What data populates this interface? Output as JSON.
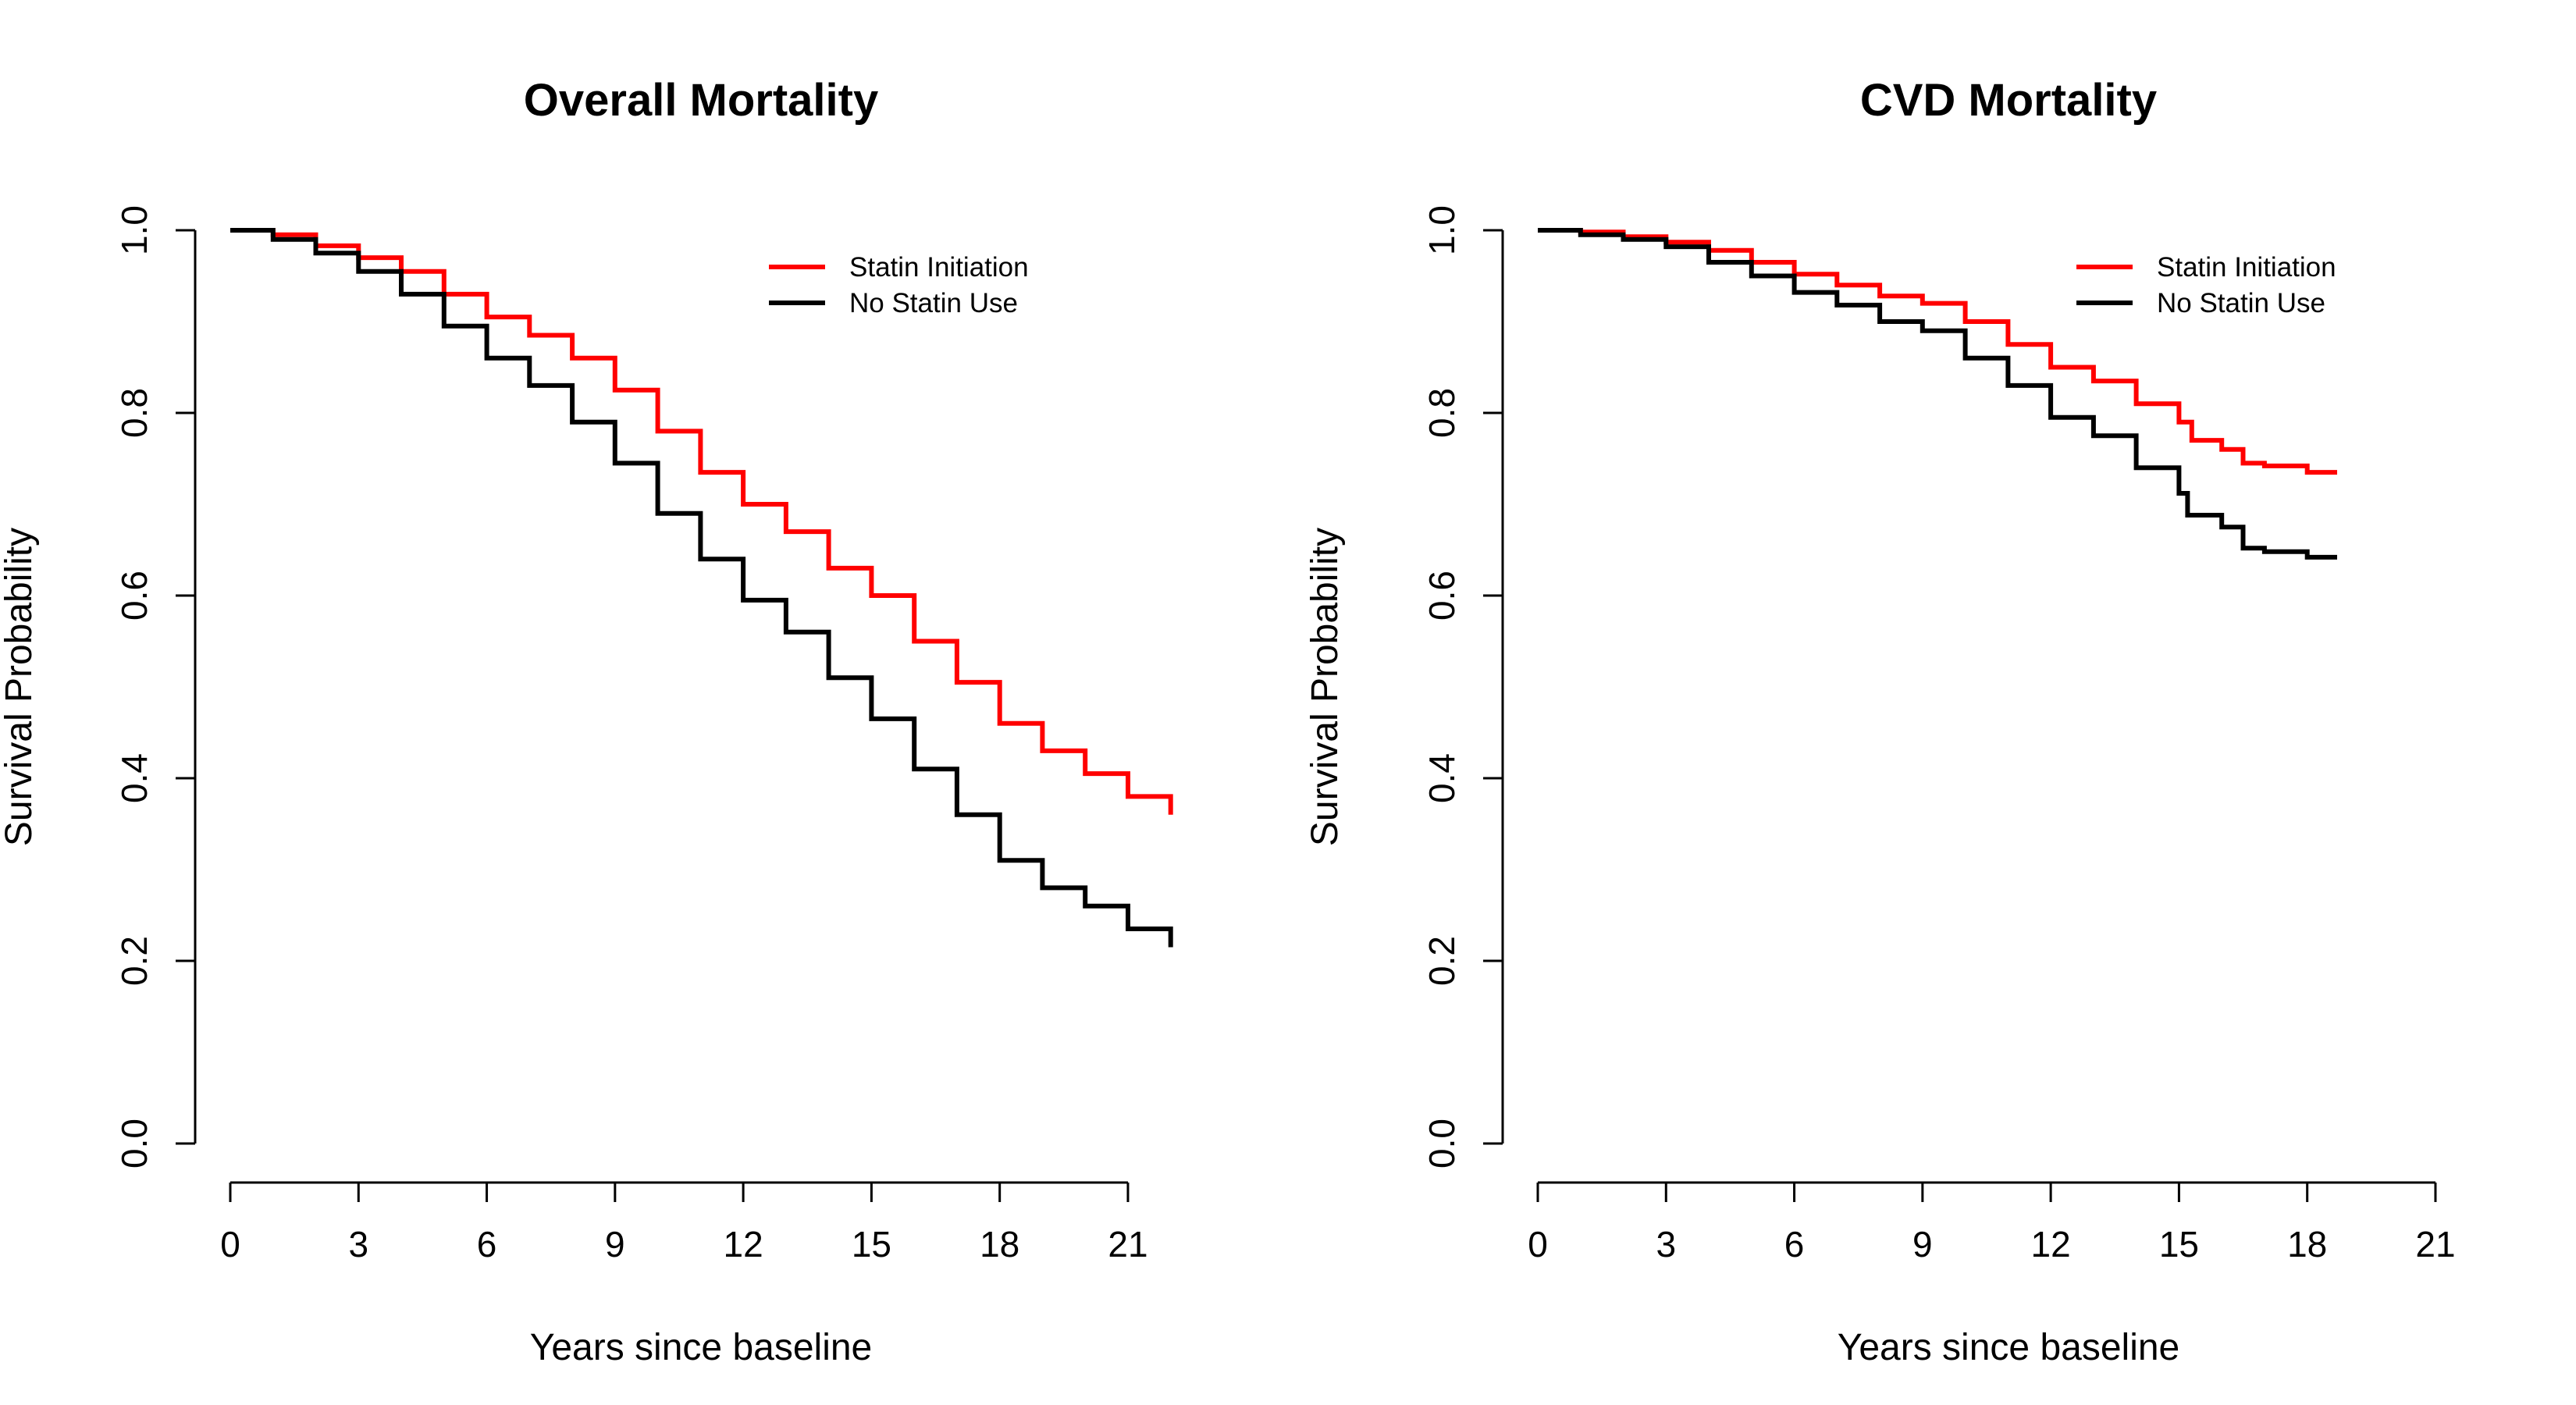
{
  "chart_data": [
    {
      "type": "line",
      "title": "Overall Mortality",
      "xlabel": "Years since baseline",
      "ylabel": "Survival Probability",
      "xlim": [
        0,
        21
      ],
      "ylim": [
        0,
        1
      ],
      "x_ticks": [
        "0",
        "3",
        "6",
        "9",
        "12",
        "15",
        "18",
        "21"
      ],
      "y_ticks": [
        "0.0",
        "0.2",
        "0.4",
        "0.6",
        "0.8",
        "1.0"
      ],
      "grid": false,
      "legend_position": "top-right",
      "series": [
        {
          "name": "Statin Initiation",
          "color": "#ff0000",
          "points": [
            [
              0,
              1.0
            ],
            [
              1,
              0.995
            ],
            [
              2,
              0.983
            ],
            [
              3,
              0.97
            ],
            [
              4,
              0.955
            ],
            [
              5,
              0.93
            ],
            [
              6,
              0.905
            ],
            [
              7,
              0.885
            ],
            [
              8,
              0.86
            ],
            [
              9,
              0.825
            ],
            [
              10,
              0.78
            ],
            [
              11,
              0.735
            ],
            [
              12,
              0.7
            ],
            [
              13,
              0.67
            ],
            [
              14,
              0.63
            ],
            [
              15,
              0.6
            ],
            [
              16,
              0.55
            ],
            [
              17,
              0.505
            ],
            [
              18,
              0.46
            ],
            [
              19,
              0.43
            ],
            [
              20,
              0.405
            ],
            [
              21,
              0.38
            ],
            [
              22,
              0.36
            ]
          ]
        },
        {
          "name": "No Statin Use",
          "color": "#000000",
          "points": [
            [
              0,
              1.0
            ],
            [
              1,
              0.99
            ],
            [
              2,
              0.975
            ],
            [
              3,
              0.955
            ],
            [
              4,
              0.93
            ],
            [
              5,
              0.895
            ],
            [
              6,
              0.86
            ],
            [
              7,
              0.83
            ],
            [
              8,
              0.79
            ],
            [
              9,
              0.745
            ],
            [
              10,
              0.69
            ],
            [
              11,
              0.64
            ],
            [
              12,
              0.595
            ],
            [
              13,
              0.56
            ],
            [
              14,
              0.51
            ],
            [
              15,
              0.465
            ],
            [
              16,
              0.41
            ],
            [
              17,
              0.36
            ],
            [
              18,
              0.31
            ],
            [
              19,
              0.28
            ],
            [
              20,
              0.26
            ],
            [
              21,
              0.235
            ],
            [
              22,
              0.215
            ]
          ]
        }
      ]
    },
    {
      "type": "line",
      "title": "CVD Mortality",
      "xlabel": "Years since baseline",
      "ylabel": "Survival Probability",
      "xlim": [
        0,
        21
      ],
      "ylim": [
        0,
        1
      ],
      "x_ticks": [
        "0",
        "3",
        "6",
        "9",
        "12",
        "15",
        "18",
        "21"
      ],
      "y_ticks": [
        "0.0",
        "0.2",
        "0.4",
        "0.6",
        "0.8",
        "1.0"
      ],
      "grid": false,
      "legend_position": "top-right",
      "series": [
        {
          "name": "Statin Initiation",
          "color": "#ff0000",
          "points": [
            [
              0,
              1.0
            ],
            [
              1,
              0.998
            ],
            [
              2,
              0.993
            ],
            [
              3,
              0.987
            ],
            [
              4,
              0.978
            ],
            [
              5,
              0.965
            ],
            [
              6,
              0.952
            ],
            [
              7,
              0.94
            ],
            [
              8,
              0.928
            ],
            [
              9,
              0.92
            ],
            [
              10,
              0.9
            ],
            [
              11,
              0.875
            ],
            [
              12,
              0.85
            ],
            [
              13,
              0.835
            ],
            [
              14,
              0.81
            ],
            [
              15,
              0.79
            ],
            [
              15.3,
              0.77
            ],
            [
              16,
              0.76
            ],
            [
              16.5,
              0.745
            ],
            [
              17,
              0.742
            ],
            [
              18,
              0.735
            ],
            [
              18.7,
              0.735
            ]
          ]
        },
        {
          "name": "No Statin Use",
          "color": "#000000",
          "points": [
            [
              0,
              1.0
            ],
            [
              1,
              0.995
            ],
            [
              2,
              0.99
            ],
            [
              3,
              0.982
            ],
            [
              4,
              0.965
            ],
            [
              5,
              0.95
            ],
            [
              6,
              0.932
            ],
            [
              7,
              0.918
            ],
            [
              8,
              0.9
            ],
            [
              9,
              0.89
            ],
            [
              10,
              0.86
            ],
            [
              11,
              0.83
            ],
            [
              12,
              0.795
            ],
            [
              13,
              0.775
            ],
            [
              14,
              0.74
            ],
            [
              15,
              0.712
            ],
            [
              15.2,
              0.688
            ],
            [
              16,
              0.675
            ],
            [
              16.5,
              0.652
            ],
            [
              17,
              0.648
            ],
            [
              18,
              0.642
            ],
            [
              18.7,
              0.642
            ]
          ]
        }
      ]
    }
  ]
}
